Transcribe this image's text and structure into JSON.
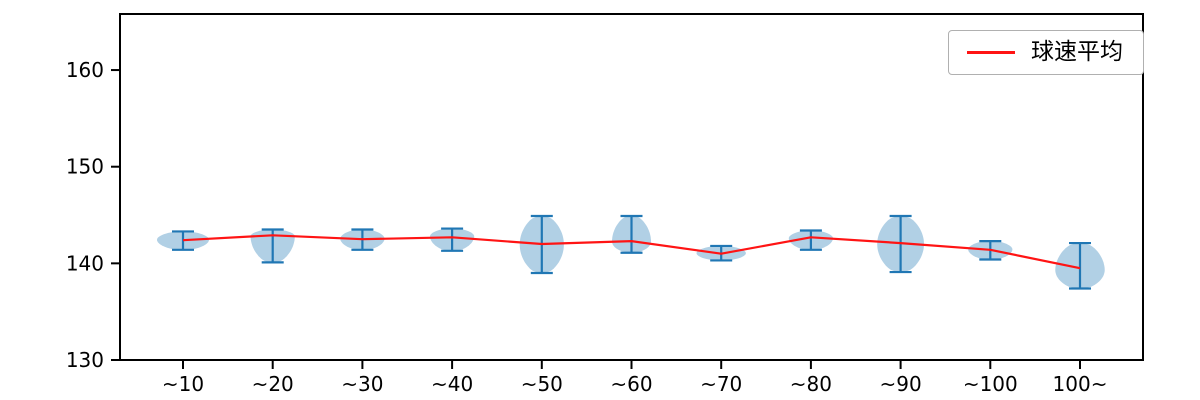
{
  "chart_data": {
    "type": "violin",
    "title": "",
    "xlabel": "",
    "ylabel": "",
    "categories": [
      "~10",
      "~20",
      "~30",
      "~40",
      "~50",
      "~60",
      "~70",
      "~80",
      "~90",
      "~100",
      "100~"
    ],
    "ylim": [
      130,
      165.8
    ],
    "yticks": [
      130,
      140,
      150,
      160
    ],
    "grid": false,
    "series": [
      {
        "name": "球速平均",
        "type": "line",
        "color": "#ff1414",
        "values": [
          142.4,
          142.9,
          142.5,
          142.7,
          142.0,
          142.3,
          141.0,
          142.7,
          142.1,
          141.4,
          139.5
        ]
      }
    ],
    "violins": [
      {
        "category": "~10",
        "min": 141.4,
        "max": 143.3,
        "mean": 142.4,
        "width": 1.0,
        "peak": 0.55
      },
      {
        "category": "~20",
        "min": 140.1,
        "max": 143.5,
        "mean": 142.9,
        "width": 0.85,
        "peak": 0.8
      },
      {
        "category": "~30",
        "min": 141.4,
        "max": 143.5,
        "mean": 142.5,
        "width": 0.85,
        "peak": 0.55
      },
      {
        "category": "~40",
        "min": 141.3,
        "max": 143.6,
        "mean": 142.7,
        "width": 0.85,
        "peak": 0.65
      },
      {
        "category": "~50",
        "min": 139.0,
        "max": 144.9,
        "mean": 142.0,
        "width": 0.85,
        "peak": 0.5
      },
      {
        "category": "~60",
        "min": 141.1,
        "max": 144.9,
        "mean": 142.3,
        "width": 0.75,
        "peak": 0.3
      },
      {
        "category": "~70",
        "min": 140.3,
        "max": 141.8,
        "mean": 141.0,
        "width": 0.95,
        "peak": 0.5
      },
      {
        "category": "~80",
        "min": 141.4,
        "max": 143.4,
        "mean": 142.7,
        "width": 0.85,
        "peak": 0.6
      },
      {
        "category": "~90",
        "min": 139.1,
        "max": 144.9,
        "mean": 142.1,
        "width": 0.9,
        "peak": 0.5
      },
      {
        "category": "~100",
        "min": 140.4,
        "max": 142.3,
        "mean": 141.4,
        "width": 0.85,
        "peak": 0.55
      },
      {
        "category": "100~",
        "min": 137.4,
        "max": 142.1,
        "mean": 139.5,
        "width": 0.95,
        "peak": 0.4
      }
    ],
    "colors": {
      "violin_fill": "#1f77b4",
      "violin_fill_opacity": 0.35,
      "whisker": "#2077b4",
      "line": "#ff1414",
      "axis": "#000000",
      "tick_label": "#000000"
    },
    "legend": {
      "position": "top-right",
      "entries": [
        {
          "label": "球速平均",
          "color": "#ff1414"
        }
      ]
    }
  }
}
